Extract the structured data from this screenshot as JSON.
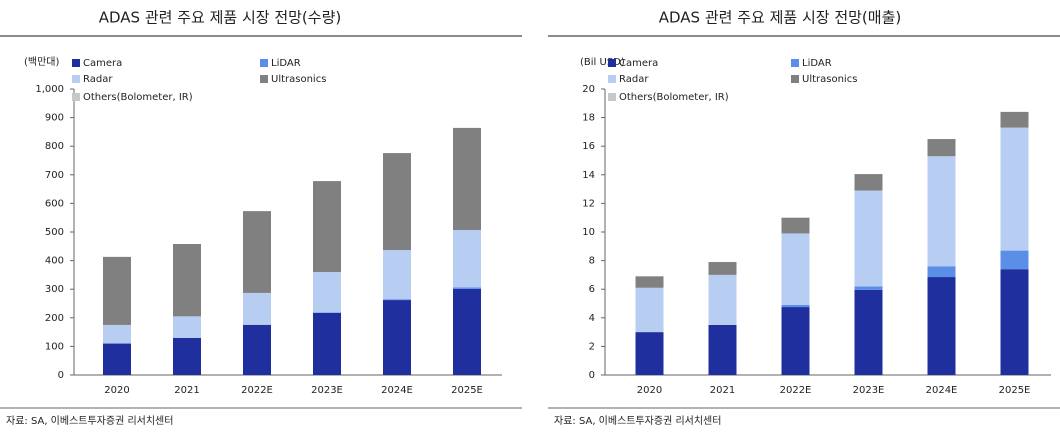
{
  "chart_data": [
    {
      "type": "bar",
      "stacked": true,
      "title": "ADAS 관련 주요 제품 시장 전망(수량)",
      "y_label": "(백만대)",
      "source": "자료: SA, 이베스트투자증권 리서치센터",
      "categories": [
        "2020",
        "2021",
        "2022E",
        "2023E",
        "2024E",
        "2025E"
      ],
      "series": [
        {
          "name": "Camera",
          "color": "#1f2f9e",
          "values": [
            110,
            130,
            175,
            217,
            262,
            301
          ]
        },
        {
          "name": "LiDAR",
          "color": "#5b8ee6",
          "values": [
            0,
            0,
            1,
            2,
            3,
            5
          ]
        },
        {
          "name": "Radar",
          "color": "#b8cdf2",
          "values": [
            65,
            75,
            111,
            141,
            172,
            201
          ]
        },
        {
          "name": "Ultrasonics",
          "color": "#808080",
          "values": [
            238,
            253,
            286,
            318,
            339,
            357
          ]
        },
        {
          "name": "Others(Bolometer, IR)",
          "color": "#c8c8c8",
          "values": [
            0,
            0,
            0,
            0,
            0,
            0
          ]
        }
      ],
      "ylim": [
        0,
        1000
      ],
      "yticks": [
        0,
        100,
        200,
        300,
        400,
        500,
        600,
        700,
        800,
        900,
        {
          "value": 1000,
          "label": "1,000"
        }
      ]
    },
    {
      "type": "bar",
      "stacked": true,
      "title": "ADAS 관련 주요 제품 시장 전망(매출)",
      "y_label": "(Bil USD)",
      "source": "자료: SA, 이베스트투자증권 리서치센터",
      "categories": [
        "2020",
        "2021",
        "2022E",
        "2023E",
        "2024E",
        "2025E"
      ],
      "series": [
        {
          "name": "Camera",
          "color": "#1f2f9e",
          "values": [
            3.0,
            3.5,
            4.75,
            5.95,
            6.85,
            7.4
          ]
        },
        {
          "name": "LiDAR",
          "color": "#5b8ee6",
          "values": [
            0,
            0,
            0.15,
            0.25,
            0.75,
            1.3
          ]
        },
        {
          "name": "Radar",
          "color": "#b8cdf2",
          "values": [
            3.1,
            3.5,
            5.0,
            6.7,
            7.7,
            8.6
          ]
        },
        {
          "name": "Ultrasonics",
          "color": "#808080",
          "values": [
            0.8,
            0.9,
            1.1,
            1.15,
            1.2,
            1.1
          ]
        },
        {
          "name": "Others(Bolometer, IR)",
          "color": "#c8c8c8",
          "values": [
            0,
            0,
            0,
            0,
            0,
            0
          ]
        }
      ],
      "ylim": [
        0,
        20
      ],
      "yticks": [
        0,
        2,
        4,
        6,
        8,
        10,
        12,
        14,
        16,
        18,
        20
      ]
    }
  ]
}
